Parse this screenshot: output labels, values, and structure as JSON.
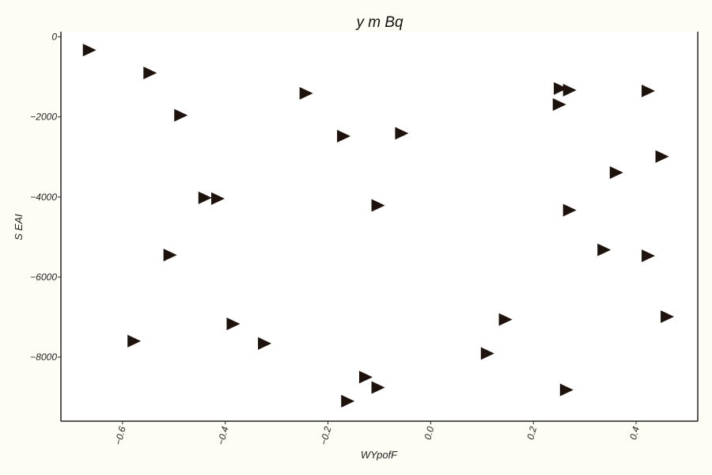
{
  "chart_data": {
    "type": "scatter",
    "title": "y m Bq",
    "xlabel": "WYpofF",
    "ylabel": "S EAI",
    "xlim": [
      -0.72,
      0.52
    ],
    "ylim": [
      -9600,
      130
    ],
    "xticks": [
      -0.6,
      -0.4,
      -0.2,
      0.0,
      0.2,
      0.4
    ],
    "xtick_labels": [
      "−0.6",
      "−0.4",
      "−0.2",
      "0.0",
      "0.2",
      "0.4"
    ],
    "yticks": [
      0,
      -2000,
      -4000,
      -6000,
      -8000
    ],
    "ytick_labels": [
      "0",
      "−2000",
      "−4000",
      "−6000",
      "−8000"
    ],
    "marker": "triangle-right",
    "marker_color": "#1e120d",
    "grid": false,
    "series": [
      {
        "points": [
          {
            "x": -0.665,
            "y": -330
          },
          {
            "x": -0.547,
            "y": -900
          },
          {
            "x": -0.487,
            "y": -1960
          },
          {
            "x": -0.243,
            "y": -1410
          },
          {
            "x": -0.17,
            "y": -2480
          },
          {
            "x": -0.057,
            "y": -2410
          },
          {
            "x": -0.44,
            "y": -4020
          },
          {
            "x": -0.415,
            "y": -4040
          },
          {
            "x": -0.103,
            "y": -4210
          },
          {
            "x": -0.508,
            "y": -5450
          },
          {
            "x": -0.578,
            "y": -7600
          },
          {
            "x": -0.385,
            "y": -7170
          },
          {
            "x": -0.324,
            "y": -7660
          },
          {
            "x": -0.162,
            "y": -9100
          },
          {
            "x": -0.127,
            "y": -8500
          },
          {
            "x": -0.103,
            "y": -8760
          },
          {
            "x": 0.11,
            "y": -7910
          },
          {
            "x": 0.145,
            "y": -7060
          },
          {
            "x": 0.252,
            "y": -1290
          },
          {
            "x": 0.27,
            "y": -1330
          },
          {
            "x": 0.25,
            "y": -1690
          },
          {
            "x": 0.27,
            "y": -4330
          },
          {
            "x": 0.264,
            "y": -8820
          },
          {
            "x": 0.337,
            "y": -5320
          },
          {
            "x": 0.361,
            "y": -3390
          },
          {
            "x": 0.423,
            "y": -1350
          },
          {
            "x": 0.45,
            "y": -2990
          },
          {
            "x": 0.423,
            "y": -5470
          },
          {
            "x": 0.46,
            "y": -6990
          }
        ]
      }
    ]
  }
}
